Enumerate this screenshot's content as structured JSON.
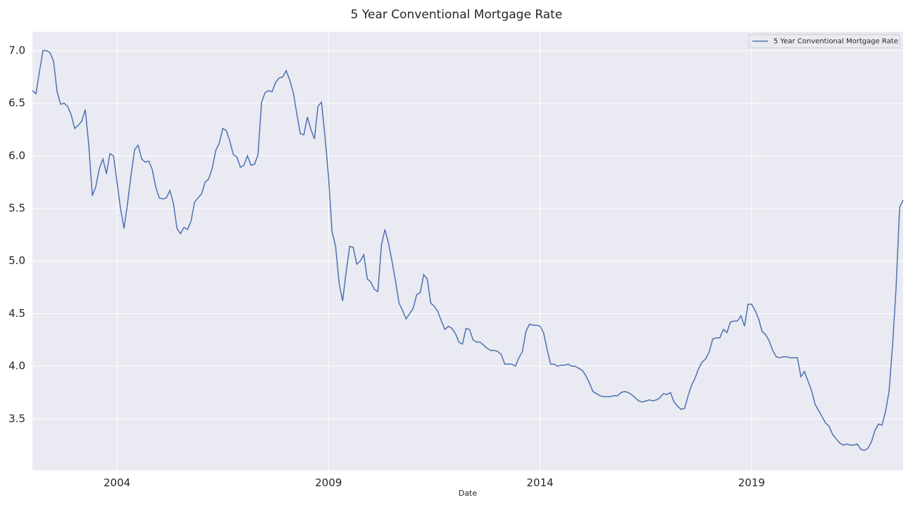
{
  "chart_data": {
    "type": "line",
    "title": "5 Year Conventional Mortgage Rate",
    "x_label": "Date",
    "x": [
      2002,
      2002.083,
      2002.167,
      2002.25,
      2002.333,
      2002.417,
      2002.5,
      2002.583,
      2002.667,
      2002.75,
      2002.833,
      2002.917,
      2003,
      2003.083,
      2003.167,
      2003.25,
      2003.333,
      2003.417,
      2003.5,
      2003.583,
      2003.667,
      2003.75,
      2003.833,
      2003.917,
      2004,
      2004.083,
      2004.167,
      2004.25,
      2004.333,
      2004.417,
      2004.5,
      2004.583,
      2004.667,
      2004.75,
      2004.833,
      2004.917,
      2005,
      2005.083,
      2005.167,
      2005.25,
      2005.333,
      2005.417,
      2005.5,
      2005.583,
      2005.667,
      2005.75,
      2005.833,
      2005.917,
      2006,
      2006.083,
      2006.167,
      2006.25,
      2006.333,
      2006.417,
      2006.5,
      2006.583,
      2006.667,
      2006.75,
      2006.833,
      2006.917,
      2007,
      2007.083,
      2007.167,
      2007.25,
      2007.333,
      2007.417,
      2007.5,
      2007.583,
      2007.667,
      2007.75,
      2007.833,
      2007.917,
      2008,
      2008.083,
      2008.167,
      2008.25,
      2008.333,
      2008.417,
      2008.5,
      2008.583,
      2008.667,
      2008.75,
      2008.833,
      2008.917,
      2009,
      2009.083,
      2009.167,
      2009.25,
      2009.333,
      2009.417,
      2009.5,
      2009.583,
      2009.667,
      2009.75,
      2009.833,
      2009.917,
      2010,
      2010.083,
      2010.167,
      2010.25,
      2010.333,
      2010.417,
      2010.5,
      2010.583,
      2010.667,
      2010.75,
      2010.833,
      2010.917,
      2011,
      2011.083,
      2011.167,
      2011.25,
      2011.333,
      2011.417,
      2011.5,
      2011.583,
      2011.667,
      2011.75,
      2011.833,
      2011.917,
      2012,
      2012.083,
      2012.167,
      2012.25,
      2012.333,
      2012.417,
      2012.5,
      2012.583,
      2012.667,
      2012.75,
      2012.833,
      2012.917,
      2013,
      2013.083,
      2013.167,
      2013.25,
      2013.333,
      2013.417,
      2013.5,
      2013.583,
      2013.667,
      2013.75,
      2013.833,
      2013.917,
      2014,
      2014.083,
      2014.167,
      2014.25,
      2014.333,
      2014.417,
      2014.5,
      2014.583,
      2014.667,
      2014.75,
      2014.833,
      2014.917,
      2015,
      2015.083,
      2015.167,
      2015.25,
      2015.333,
      2015.417,
      2015.5,
      2015.583,
      2015.667,
      2015.75,
      2015.833,
      2015.917,
      2016,
      2016.083,
      2016.167,
      2016.25,
      2016.333,
      2016.417,
      2016.5,
      2016.583,
      2016.667,
      2016.75,
      2016.833,
      2016.917,
      2017,
      2017.083,
      2017.167,
      2017.25,
      2017.333,
      2017.417,
      2017.5,
      2017.583,
      2017.667,
      2017.75,
      2017.833,
      2017.917,
      2018,
      2018.083,
      2018.167,
      2018.25,
      2018.333,
      2018.417,
      2018.5,
      2018.583,
      2018.667,
      2018.75,
      2018.833,
      2018.917,
      2019,
      2019.083,
      2019.167,
      2019.25,
      2019.333,
      2019.417,
      2019.5,
      2019.583,
      2019.667,
      2019.75,
      2019.833,
      2019.917,
      2020,
      2020.083,
      2020.167,
      2020.25,
      2020.333,
      2020.417,
      2020.5,
      2020.583,
      2020.667,
      2020.75,
      2020.833,
      2020.917,
      2021,
      2021.083,
      2021.167,
      2021.25,
      2021.333,
      2021.417,
      2021.5,
      2021.583,
      2021.667,
      2021.75,
      2021.833,
      2021.917,
      2022,
      2022.083,
      2022.167,
      2022.25,
      2022.333,
      2022.417,
      2022.5,
      2022.583
    ],
    "series": [
      {
        "name": "5 Year Conventional Mortgage Rate",
        "color": "#4c72b0",
        "values": [
          6.62,
          6.59,
          6.8,
          7.0,
          7.0,
          6.98,
          6.9,
          6.61,
          6.49,
          6.5,
          6.47,
          6.39,
          6.26,
          6.29,
          6.33,
          6.44,
          6.1,
          5.62,
          5.71,
          5.88,
          5.97,
          5.83,
          6.02,
          6.0,
          5.75,
          5.5,
          5.31,
          5.55,
          5.82,
          6.06,
          6.1,
          5.97,
          5.94,
          5.95,
          5.87,
          5.7,
          5.6,
          5.59,
          5.6,
          5.67,
          5.55,
          5.31,
          5.26,
          5.32,
          5.3,
          5.38,
          5.56,
          5.6,
          5.64,
          5.75,
          5.78,
          5.88,
          6.05,
          6.12,
          6.26,
          6.24,
          6.14,
          6.01,
          5.99,
          5.89,
          5.91,
          6.0,
          5.91,
          5.92,
          6.01,
          6.51,
          6.6,
          6.62,
          6.61,
          6.7,
          6.74,
          6.75,
          6.81,
          6.72,
          6.6,
          6.4,
          6.21,
          6.2,
          6.37,
          6.25,
          6.16,
          6.47,
          6.51,
          6.18,
          5.8,
          5.28,
          5.14,
          4.79,
          4.62,
          4.9,
          5.14,
          5.13,
          4.97,
          5.0,
          5.06,
          4.83,
          4.8,
          4.73,
          4.71,
          5.15,
          5.3,
          5.17,
          5.0,
          4.81,
          4.6,
          4.53,
          4.45,
          4.5,
          4.55,
          4.68,
          4.7,
          4.87,
          4.83,
          4.6,
          4.57,
          4.52,
          4.43,
          4.35,
          4.38,
          4.36,
          4.31,
          4.23,
          4.21,
          4.36,
          4.35,
          4.25,
          4.23,
          4.23,
          4.2,
          4.17,
          4.15,
          4.15,
          4.14,
          4.11,
          4.02,
          4.02,
          4.02,
          4.0,
          4.08,
          4.14,
          4.33,
          4.4,
          4.39,
          4.39,
          4.38,
          4.32,
          4.16,
          4.02,
          4.02,
          4.0,
          4.01,
          4.01,
          4.02,
          4.0,
          4.0,
          3.98,
          3.96,
          3.91,
          3.84,
          3.76,
          3.74,
          3.72,
          3.71,
          3.71,
          3.71,
          3.72,
          3.72,
          3.75,
          3.76,
          3.75,
          3.73,
          3.7,
          3.67,
          3.66,
          3.67,
          3.68,
          3.67,
          3.68,
          3.7,
          3.74,
          3.73,
          3.75,
          3.66,
          3.62,
          3.59,
          3.6,
          3.72,
          3.82,
          3.89,
          3.98,
          4.04,
          4.07,
          4.14,
          4.26,
          4.27,
          4.27,
          4.35,
          4.32,
          4.42,
          4.43,
          4.43,
          4.48,
          4.38,
          4.59,
          4.59,
          4.53,
          4.45,
          4.33,
          4.3,
          4.24,
          4.15,
          4.09,
          4.08,
          4.09,
          4.09,
          4.08,
          4.08,
          4.08,
          3.9,
          3.95,
          3.86,
          3.77,
          3.64,
          3.58,
          3.52,
          3.46,
          3.43,
          3.35,
          3.31,
          3.27,
          3.25,
          3.26,
          3.25,
          3.25,
          3.26,
          3.21,
          3.2,
          3.22,
          3.28,
          3.39,
          3.45,
          3.44,
          3.57,
          3.76,
          4.2,
          4.75,
          5.51,
          5.58
        ]
      }
    ],
    "xlim": [
      2002,
      2022.583
    ],
    "xticks": [
      2004,
      2009,
      2014,
      2019
    ],
    "ylim": [
      3.01,
      7.18
    ],
    "yticks": [
      3.5,
      {
        "value": 4.0,
        "label": "4.0"
      },
      4.5,
      {
        "value": 5.0,
        "label": "5.0"
      },
      5.5,
      {
        "value": 6.0,
        "label": "6.0"
      },
      6.5,
      {
        "value": 7.0,
        "label": "7.0"
      }
    ],
    "grid": true,
    "legend": "upper right"
  }
}
